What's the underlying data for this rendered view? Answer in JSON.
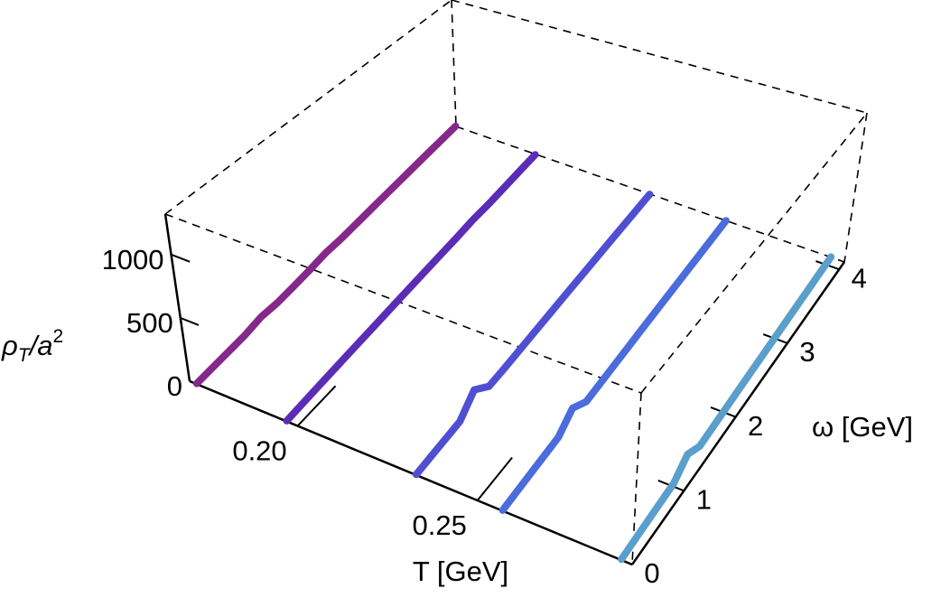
{
  "chart_data": {
    "type": "line3d",
    "xlabel": "T [GeV]",
    "ylabel": "ω [GeV]",
    "zlabel": {
      "base": "ρ",
      "sub": "T",
      "mid": "/a",
      "sup": "2"
    },
    "xlim": [
      0.17,
      0.293
    ],
    "ylim": [
      0,
      4.1
    ],
    "zlim": [
      0,
      1320
    ],
    "xticks": [
      {
        "value": 0.2,
        "label": "0.20"
      },
      {
        "value": 0.25,
        "label": "0.25"
      }
    ],
    "yticks": [
      0,
      1,
      2,
      3,
      4
    ],
    "zticks": [
      0,
      500,
      1000
    ],
    "omega": [
      0,
      0.25,
      0.5,
      0.75,
      1,
      1.25,
      1.5,
      1.75,
      2,
      2.25,
      2.5,
      2.75,
      3,
      3.25,
      3.5,
      3.75,
      4
    ],
    "series": [
      {
        "T": 0.172,
        "color": "#86288a",
        "values": [
          5,
          10,
          15,
          20,
          40,
          30,
          35,
          45,
          60,
          55,
          60,
          65,
          70,
          75,
          80,
          85,
          90
        ]
      },
      {
        "T": 0.197,
        "color": "#5b2db6",
        "values": [
          5,
          10,
          15,
          20,
          25,
          30,
          35,
          40,
          45,
          50,
          55,
          60,
          70,
          65,
          70,
          75,
          80
        ]
      },
      {
        "T": 0.233,
        "color": "#4f4fd4",
        "values": [
          5,
          10,
          15,
          20,
          140,
          30,
          30,
          35,
          40,
          45,
          50,
          55,
          60,
          65,
          70,
          75,
          80
        ]
      },
      {
        "T": 0.257,
        "color": "#4a6cdc",
        "values": [
          5,
          10,
          15,
          20,
          25,
          120,
          30,
          35,
          40,
          45,
          50,
          55,
          60,
          65,
          70,
          75,
          80
        ]
      },
      {
        "T": 0.29,
        "color": "#5a9fcc",
        "values": [
          5,
          10,
          15,
          20,
          25,
          110,
          30,
          35,
          40,
          45,
          50,
          55,
          60,
          65,
          70,
          75,
          80
        ]
      }
    ]
  }
}
